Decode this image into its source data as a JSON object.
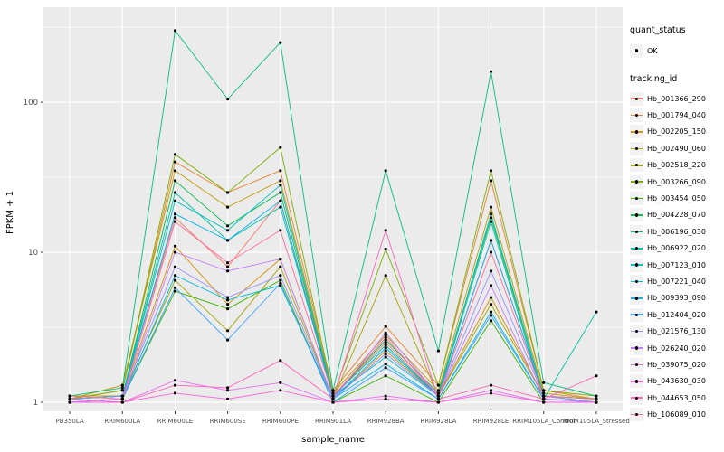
{
  "chart_data": {
    "type": "line",
    "title": "",
    "xlabel": "sample_name",
    "ylabel": "FPKM + 1",
    "y_scale": "log10",
    "y_ticks": [
      1,
      10,
      100
    ],
    "y_minor_ticks": [
      3.162,
      31.62,
      316.2
    ],
    "ylim": [
      0.87,
      430
    ],
    "grid": true,
    "panel_bg": "#EBEBEB",
    "grid_color": "#FFFFFF",
    "point_color": "#000000",
    "tick_label_color": "#4D4D4D",
    "categories": [
      "PB350LA",
      "RRIM600LA",
      "RRIM600LE",
      "RRIM600SE",
      "RRIM600PE",
      "RRIM901LA",
      "RRIM928BA",
      "RRIM928LA",
      "RRIM928LE",
      "RRIM105LA_Control",
      "RRIM105LA_Stressed"
    ],
    "legend": {
      "quant_status_title": "quant_status",
      "quant_status_items": [
        "OK"
      ],
      "tracking_id_title": "tracking_id",
      "position": "right"
    },
    "series": [
      {
        "name": "Hb_001366_290",
        "color": "#F8766D",
        "values": [
          1.1,
          1.1,
          17.0,
          8.0,
          22.0,
          1.1,
          2.5,
          1.1,
          12.0,
          1.1,
          1.0
        ]
      },
      {
        "name": "Hb_001794_040",
        "color": "#EA8331",
        "values": [
          1.05,
          1.2,
          40.0,
          25.0,
          35.0,
          1.2,
          3.2,
          1.3,
          30.0,
          1.2,
          1.05
        ]
      },
      {
        "name": "Hb_002205_150",
        "color": "#D89000",
        "values": [
          1.1,
          1.1,
          11.0,
          4.5,
          9.0,
          1.05,
          2.2,
          1.1,
          5.0,
          1.1,
          1.0
        ]
      },
      {
        "name": "Hb_002490_060",
        "color": "#C09B00",
        "values": [
          1.05,
          1.3,
          35.0,
          20.0,
          30.0,
          1.15,
          2.8,
          1.2,
          20.0,
          1.15,
          1.05
        ]
      },
      {
        "name": "Hb_002518_220",
        "color": "#A3A500",
        "values": [
          1.1,
          1.1,
          6.5,
          3.0,
          8.0,
          1.05,
          7.0,
          1.1,
          4.5,
          1.1,
          1.0
        ]
      },
      {
        "name": "Hb_003266_090",
        "color": "#7CAE00",
        "values": [
          1.05,
          1.2,
          45.0,
          25.0,
          50.0,
          1.1,
          10.5,
          1.3,
          35.0,
          1.2,
          1.1
        ]
      },
      {
        "name": "Hb_003454_050",
        "color": "#39B600",
        "values": [
          1.0,
          1.05,
          5.5,
          4.2,
          6.5,
          1.0,
          1.5,
          1.0,
          3.5,
          1.0,
          1.0
        ]
      },
      {
        "name": "Hb_004228_070",
        "color": "#00BB4E",
        "values": [
          1.05,
          1.1,
          30.0,
          15.0,
          25.0,
          1.1,
          2.6,
          1.15,
          17.0,
          1.1,
          1.05
        ]
      },
      {
        "name": "Hb_006196_030",
        "color": "#00BF7D",
        "values": [
          1.1,
          1.25,
          300.0,
          105.0,
          250.0,
          1.2,
          35.0,
          2.2,
          160.0,
          1.35,
          1.1
        ]
      },
      {
        "name": "Hb_006922_020",
        "color": "#00C1A3",
        "values": [
          1.05,
          1.1,
          25.0,
          12.0,
          20.0,
          1.1,
          2.4,
          1.1,
          16.0,
          1.05,
          4.0
        ]
      },
      {
        "name": "Hb_007123_010",
        "color": "#00BFC4",
        "values": [
          1.05,
          1.1,
          22.0,
          14.0,
          28.0,
          1.1,
          2.0,
          1.1,
          18.0,
          1.1,
          1.05
        ]
      },
      {
        "name": "Hb_007221_040",
        "color": "#00BAE0",
        "values": [
          1.0,
          1.05,
          7.0,
          4.8,
          6.0,
          1.05,
          1.8,
          1.05,
          4.0,
          1.05,
          1.0
        ]
      },
      {
        "name": "Hb_009393_090",
        "color": "#00B0F6",
        "values": [
          1.05,
          1.1,
          18.0,
          12.0,
          22.0,
          1.05,
          2.3,
          1.1,
          12.0,
          1.1,
          1.0
        ]
      },
      {
        "name": "Hb_012404_020",
        "color": "#35A2FF",
        "values": [
          1.0,
          1.05,
          5.8,
          2.6,
          6.2,
          1.0,
          1.7,
          1.05,
          3.8,
          1.05,
          1.0
        ]
      },
      {
        "name": "Hb_021576_130",
        "color": "#9590FF",
        "values": [
          1.05,
          1.1,
          8.0,
          5.0,
          7.0,
          1.05,
          2.1,
          1.1,
          7.5,
          1.1,
          1.0
        ]
      },
      {
        "name": "Hb_026240_020",
        "color": "#C77CFF",
        "values": [
          1.0,
          1.05,
          10.0,
          7.5,
          9.0,
          1.05,
          2.9,
          1.1,
          6.0,
          1.05,
          1.0
        ]
      },
      {
        "name": "Hb_039075_020",
        "color": "#E76BF3",
        "values": [
          1.0,
          1.0,
          1.4,
          1.2,
          1.35,
          1.0,
          1.1,
          1.0,
          1.2,
          1.0,
          1.0
        ]
      },
      {
        "name": "Hb_043630_030",
        "color": "#FA62DB",
        "values": [
          1.0,
          1.0,
          1.15,
          1.05,
          1.2,
          1.0,
          1.05,
          1.0,
          1.15,
          1.0,
          1.0
        ]
      },
      {
        "name": "Hb_044653_050",
        "color": "#FF62BC",
        "values": [
          1.05,
          1.0,
          1.3,
          1.25,
          1.9,
          1.05,
          14.0,
          1.05,
          1.3,
          1.05,
          1.5
        ]
      },
      {
        "name": "Hb_106089_010",
        "color": "#FF6A98",
        "values": [
          1.1,
          1.05,
          16.0,
          8.5,
          14.0,
          1.1,
          2.7,
          1.1,
          10.0,
          1.1,
          1.05
        ]
      }
    ]
  }
}
